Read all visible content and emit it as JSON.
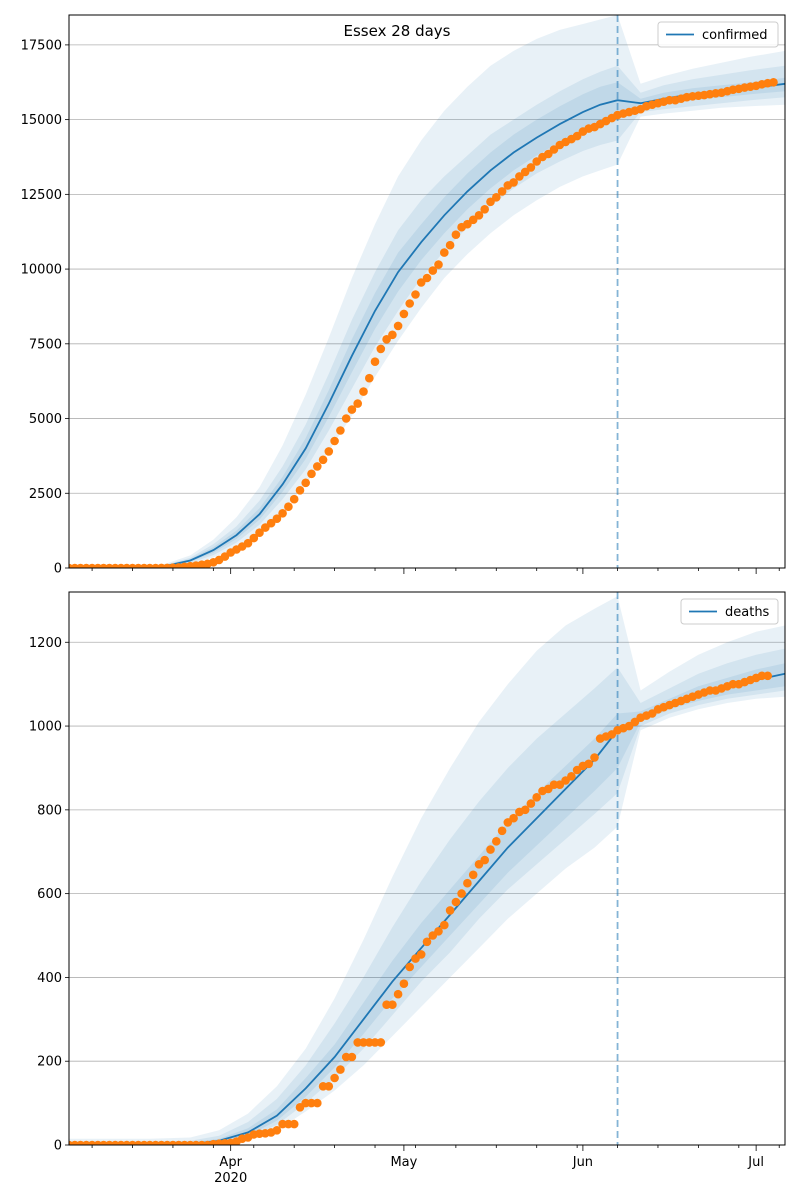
{
  "title": "Essex 28 days",
  "colors": {
    "model": "#1f77b4",
    "observed": "#ff7f0e",
    "band": "#1f77b4",
    "grid": "#b0b0b0",
    "axis": "#000000"
  },
  "x_axis": {
    "min": "2020-03-04",
    "max": "2020-07-06",
    "major_ticks": [
      {
        "date": "2020-04-01",
        "label": "Apr",
        "sublabel": "2020"
      },
      {
        "date": "2020-05-01",
        "label": "May",
        "sublabel": ""
      },
      {
        "date": "2020-06-01",
        "label": "Jun",
        "sublabel": ""
      },
      {
        "date": "2020-07-01",
        "label": "Jul",
        "sublabel": ""
      }
    ],
    "minor_ticks": [
      "2020-03-08",
      "2020-03-15",
      "2020-03-22",
      "2020-03-29",
      "2020-04-05",
      "2020-04-12",
      "2020-04-19",
      "2020-04-26",
      "2020-05-03",
      "2020-05-10",
      "2020-05-17",
      "2020-05-24",
      "2020-05-31",
      "2020-06-07",
      "2020-06-14",
      "2020-06-21",
      "2020-06-28",
      "2020-07-05"
    ]
  },
  "forecast_start": "2020-06-07",
  "chart_data": [
    {
      "type": "line",
      "legend": "confirmed",
      "legend_position": "upper right",
      "grid": "horizontal",
      "ylim": [
        0,
        18500
      ],
      "yticks": [
        0,
        2500,
        5000,
        7500,
        10000,
        12500,
        15000,
        17500
      ],
      "model": {
        "x": [
          "2020-03-04",
          "2020-03-11",
          "2020-03-18",
          "2020-03-21",
          "2020-03-25",
          "2020-03-29",
          "2020-04-02",
          "2020-04-06",
          "2020-04-10",
          "2020-04-14",
          "2020-04-18",
          "2020-04-22",
          "2020-04-26",
          "2020-04-30",
          "2020-05-04",
          "2020-05-08",
          "2020-05-12",
          "2020-05-16",
          "2020-05-20",
          "2020-05-24",
          "2020-05-28",
          "2020-06-01",
          "2020-06-04",
          "2020-06-07",
          "2020-06-11",
          "2020-06-15",
          "2020-06-20",
          "2020-06-25",
          "2020-06-30",
          "2020-07-06"
        ],
        "y": [
          0,
          0,
          20,
          80,
          250,
          600,
          1100,
          1800,
          2800,
          4000,
          5500,
          7100,
          8600,
          9900,
          10900,
          11800,
          12600,
          13300,
          13900,
          14400,
          14850,
          15250,
          15500,
          15650,
          15550,
          15700,
          15850,
          15950,
          16050,
          16200
        ]
      },
      "bands": [
        {
          "level": "outer",
          "lower": [
            0,
            0,
            0,
            30,
            120,
            350,
            700,
            1200,
            1900,
            2800,
            3900,
            5100,
            6400,
            7600,
            8700,
            9700,
            10500,
            11200,
            11800,
            12300,
            12750,
            13100,
            13300,
            13500,
            15100,
            15200,
            15300,
            15400,
            15450,
            15500
          ],
          "upper": [
            0,
            0,
            40,
            160,
            420,
            950,
            1700,
            2700,
            4100,
            5800,
            7700,
            9700,
            11500,
            13100,
            14300,
            15300,
            16100,
            16800,
            17300,
            17700,
            18000,
            18200,
            18350,
            18500,
            16200,
            16450,
            16700,
            16900,
            17100,
            17300
          ]
        },
        {
          "level": "middle",
          "lower": [
            0,
            0,
            5,
            50,
            170,
            430,
            850,
            1450,
            2300,
            3300,
            4600,
            6000,
            7400,
            8600,
            9700,
            10600,
            11400,
            12100,
            12700,
            13200,
            13600,
            13950,
            14150,
            14300,
            15250,
            15350,
            15450,
            15550,
            15650,
            15750
          ],
          "upper": [
            0,
            0,
            35,
            120,
            340,
            800,
            1400,
            2250,
            3400,
            4800,
            6500,
            8300,
            9900,
            11300,
            12300,
            13100,
            13800,
            14500,
            15000,
            15500,
            15950,
            16350,
            16600,
            16800,
            15900,
            16150,
            16350,
            16500,
            16650,
            16800
          ]
        },
        {
          "level": "inner",
          "lower": [
            0,
            0,
            10,
            65,
            210,
            510,
            970,
            1620,
            2550,
            3650,
            5050,
            6550,
            8000,
            9250,
            10300,
            11200,
            12000,
            12700,
            13300,
            13800,
            14250,
            14650,
            14900,
            15050,
            15400,
            15500,
            15650,
            15750,
            15850,
            15950
          ],
          "upper": [
            0,
            0,
            30,
            100,
            300,
            700,
            1250,
            2000,
            3050,
            4350,
            5950,
            7650,
            9200,
            10550,
            11500,
            12400,
            13200,
            13900,
            14500,
            15000,
            15450,
            15850,
            16100,
            16250,
            15700,
            15900,
            16050,
            16150,
            16250,
            16400
          ]
        }
      ],
      "observed": {
        "start": "2020-03-04",
        "values": [
          0,
          0,
          0,
          0,
          0,
          0,
          0,
          0,
          0,
          0,
          0,
          0,
          0,
          0,
          0,
          0,
          2,
          5,
          10,
          20,
          40,
          60,
          80,
          110,
          140,
          190,
          270,
          380,
          520,
          620,
          720,
          830,
          1000,
          1180,
          1350,
          1500,
          1650,
          1830,
          2050,
          2300,
          2600,
          2850,
          3150,
          3400,
          3620,
          3900,
          4250,
          4600,
          5000,
          5300,
          5500,
          5900,
          6350,
          6900,
          7330,
          7650,
          7800,
          8100,
          8500,
          8850,
          9150,
          9550,
          9700,
          9950,
          10150,
          10550,
          10800,
          11150,
          11400,
          11500,
          11650,
          11800,
          12000,
          12250,
          12400,
          12600,
          12800,
          12900,
          13100,
          13250,
          13400,
          13600,
          13750,
          13850,
          14000,
          14150,
          14250,
          14350,
          14450,
          14600,
          14700,
          14750,
          14850,
          14950,
          15050,
          15150,
          15200,
          15250,
          15300,
          15350,
          15450,
          15500,
          15550,
          15600,
          15650,
          15650,
          15700,
          15750,
          15780,
          15800,
          15820,
          15850,
          15880,
          15900,
          15950,
          16000,
          16030,
          16070,
          16100,
          16130,
          16180,
          16220,
          16250
        ]
      }
    },
    {
      "type": "line",
      "legend": "deaths",
      "legend_position": "upper right",
      "grid": "horizontal",
      "ylim": [
        0,
        1320
      ],
      "yticks": [
        0,
        200,
        400,
        600,
        800,
        1000,
        1200
      ],
      "model": {
        "x": [
          "2020-03-04",
          "2020-03-18",
          "2020-03-25",
          "2020-03-30",
          "2020-04-04",
          "2020-04-09",
          "2020-04-14",
          "2020-04-19",
          "2020-04-24",
          "2020-04-29",
          "2020-05-04",
          "2020-05-09",
          "2020-05-14",
          "2020-05-19",
          "2020-05-24",
          "2020-05-29",
          "2020-06-03",
          "2020-06-07",
          "2020-06-11",
          "2020-06-16",
          "2020-06-21",
          "2020-06-26",
          "2020-07-01",
          "2020-07-06"
        ],
        "y": [
          0,
          0,
          2,
          10,
          30,
          70,
          135,
          210,
          300,
          390,
          470,
          550,
          630,
          710,
          780,
          850,
          920,
          990,
          1020,
          1050,
          1075,
          1095,
          1110,
          1125
        ]
      },
      "bands": [
        {
          "level": "outer",
          "lower": [
            0,
            0,
            0,
            2,
            12,
            35,
            80,
            130,
            190,
            260,
            330,
            400,
            470,
            540,
            600,
            660,
            710,
            760,
            990,
            1020,
            1040,
            1055,
            1065,
            1070
          ],
          "upper": [
            15,
            15,
            18,
            35,
            75,
            140,
            230,
            350,
            490,
            640,
            780,
            900,
            1010,
            1100,
            1180,
            1240,
            1280,
            1310,
            1085,
            1130,
            1170,
            1200,
            1225,
            1240
          ]
        },
        {
          "level": "middle",
          "lower": [
            0,
            0,
            1,
            4,
            18,
            48,
            100,
            160,
            230,
            310,
            390,
            460,
            540,
            610,
            670,
            730,
            790,
            840,
            1000,
            1030,
            1050,
            1065,
            1075,
            1085
          ],
          "upper": [
            8,
            8,
            10,
            22,
            55,
            110,
            190,
            290,
            400,
            520,
            630,
            730,
            820,
            900,
            970,
            1030,
            1090,
            1140,
            1055,
            1090,
            1125,
            1150,
            1170,
            1185
          ]
        },
        {
          "level": "inner",
          "lower": [
            0,
            0,
            1,
            6,
            22,
            58,
            115,
            185,
            265,
            350,
            425,
            500,
            575,
            650,
            715,
            780,
            845,
            900,
            1010,
            1040,
            1060,
            1075,
            1085,
            1095
          ],
          "upper": [
            4,
            4,
            6,
            15,
            40,
            85,
            160,
            240,
            340,
            440,
            530,
            610,
            690,
            770,
            840,
            905,
            970,
            1030,
            1035,
            1065,
            1095,
            1115,
            1135,
            1150
          ]
        }
      ],
      "observed": {
        "start": "2020-03-04",
        "values": [
          0,
          0,
          0,
          0,
          0,
          0,
          0,
          0,
          0,
          0,
          0,
          0,
          0,
          0,
          0,
          0,
          0,
          0,
          0,
          0,
          0,
          0,
          0,
          0,
          0,
          2,
          3,
          4,
          5,
          8,
          15,
          18,
          25,
          27,
          28,
          30,
          35,
          50,
          50,
          50,
          90,
          100,
          100,
          100,
          140,
          140,
          160,
          180,
          210,
          210,
          245,
          245,
          245,
          245,
          245,
          335,
          335,
          360,
          385,
          425,
          445,
          455,
          485,
          500,
          510,
          525,
          560,
          580,
          600,
          625,
          645,
          670,
          680,
          705,
          725,
          750,
          770,
          780,
          795,
          800,
          815,
          830,
          845,
          850,
          860,
          860,
          870,
          880,
          895,
          905,
          910,
          925,
          970,
          975,
          980,
          990,
          995,
          1000,
          1010,
          1020,
          1025,
          1030,
          1040,
          1045,
          1050,
          1055,
          1060,
          1065,
          1070,
          1075,
          1080,
          1085,
          1085,
          1090,
          1095,
          1100,
          1100,
          1105,
          1110,
          1115,
          1120,
          1120
        ]
      }
    }
  ]
}
